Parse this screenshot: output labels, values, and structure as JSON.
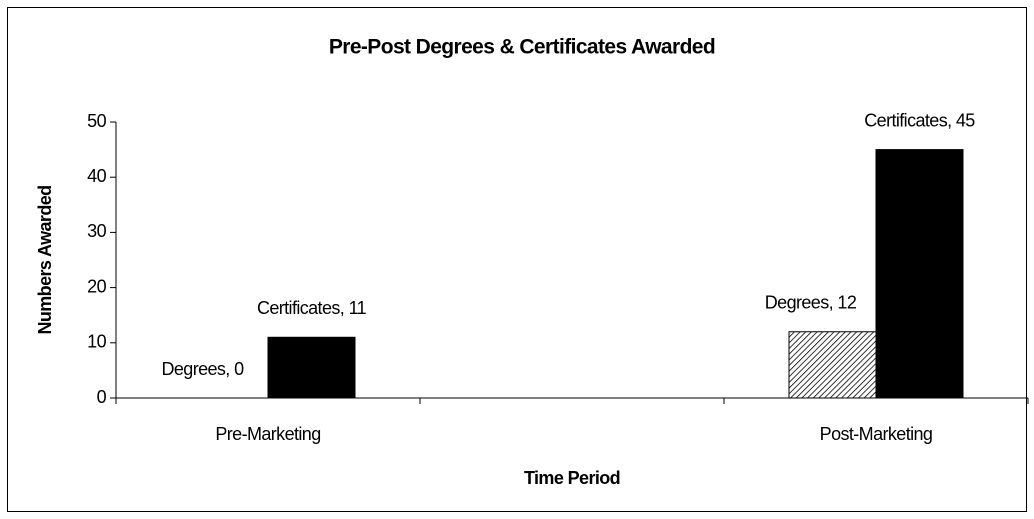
{
  "chart_data": {
    "type": "bar",
    "title": "Pre-Post Degrees & Certificates Awarded",
    "x_label": "Time Period",
    "y_label": "Numbers Awarded",
    "categories": [
      "Pre-Marketing",
      null,
      "Post-Marketing"
    ],
    "series": [
      {
        "name": "Degrees",
        "color": "#000000",
        "pattern": "diagonal-hatch",
        "values": [
          0,
          null,
          12
        ],
        "value_labels": [
          "Degrees, 0",
          null,
          "Degrees, 12"
        ]
      },
      {
        "name": "Certificates",
        "color": "#000000",
        "values": [
          11,
          null,
          45
        ],
        "value_labels": [
          "Certificates, 11",
          null,
          "Certificates, 45"
        ]
      }
    ],
    "ylim": [
      0,
      50
    ],
    "yticks": [
      0,
      10,
      20,
      30,
      40,
      50
    ],
    "grid": false
  }
}
